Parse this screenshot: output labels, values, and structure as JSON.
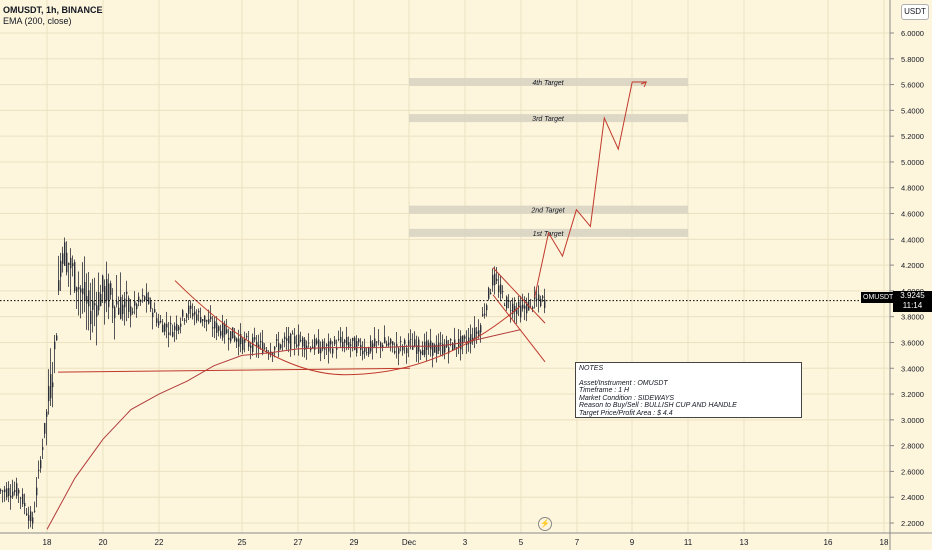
{
  "header": {
    "symbol_line": "OMUSDT, 1h, BINANCE",
    "indicator_line": "EMA (200, close)"
  },
  "price_axis": {
    "unit": "USDT",
    "current_price": "3.9245",
    "countdown": "11:14",
    "symbol_tag": "OMUSDT"
  },
  "notes": {
    "title": "NOTES",
    "lines": [
      "Asset/Instrument : OMUSDT",
      "Timeframe : 1 H",
      "Market Condition : SIDEWAYS",
      "Reason to Buy/Sell : BULLISH CUP AND HANDLE",
      "Target Price/Profit Area : $ 4.4"
    ]
  },
  "icons": {
    "flash": "lightning-icon"
  },
  "colors": {
    "background": "#fdf5dc",
    "candle": "#2a2e39",
    "ema": "#b13c3c",
    "drawing": "#c0392b",
    "target_zone": "#d9d4c2"
  },
  "chart_data": {
    "type": "candlestick",
    "ylim": [
      2.1,
      6.2
    ],
    "y_ticks": [
      "2.2000",
      "2.4000",
      "2.6000",
      "2.8000",
      "3.0000",
      "3.2000",
      "3.4000",
      "3.6000",
      "3.8000",
      "4.0000",
      "4.2000",
      "4.4000",
      "4.6000",
      "4.8000",
      "5.0000",
      "5.2000",
      "5.4000",
      "5.6000",
      "5.8000",
      "6.0000"
    ],
    "x_ticks": [
      "18",
      "20",
      "22",
      "25",
      "27",
      "29",
      "Dec",
      "3",
      "5",
      "7",
      "9",
      "11",
      "13",
      "16",
      "18"
    ],
    "current_price": 3.9245,
    "targets": [
      {
        "label": "1st Target",
        "price": 4.45
      },
      {
        "label": "2nd Target",
        "price": 4.63
      },
      {
        "label": "3rd Target",
        "price": 5.34
      },
      {
        "label": "4th Target",
        "price": 5.62
      }
    ],
    "price_series": {
      "description": "OMUSDT hourly closes approximately, Nov 17 to Dec 5",
      "x": [
        "Nov 17",
        "Nov 17 12h",
        "Nov 18",
        "Nov 18 06h",
        "Nov 18 12h",
        "Nov 19",
        "Nov 19 12h",
        "Nov 20",
        "Nov 20 12h",
        "Nov 21",
        "Nov 21 12h",
        "Nov 22",
        "Nov 22 12h",
        "Nov 23",
        "Nov 23 12h",
        "Nov 24",
        "Nov 24 12h",
        "Nov 25",
        "Nov 25 12h",
        "Nov 26",
        "Nov 26 12h",
        "Nov 27",
        "Nov 27 12h",
        "Nov 28",
        "Nov 28 12h",
        "Nov 29",
        "Nov 29 12h",
        "Nov 30",
        "Nov 30 12h",
        "Dec 1",
        "Dec 1 12h",
        "Dec 2",
        "Dec 2 12h",
        "Dec 3",
        "Dec 3 12h",
        "Dec 4",
        "Dec 4 12h",
        "Dec 5",
        "Dec 5 12h"
      ],
      "y": [
        2.45,
        2.2,
        3.1,
        3.5,
        4.35,
        4.1,
        3.85,
        4.0,
        3.9,
        3.85,
        3.95,
        3.75,
        3.7,
        3.85,
        3.8,
        3.72,
        3.68,
        3.6,
        3.58,
        3.55,
        3.6,
        3.62,
        3.58,
        3.55,
        3.6,
        3.58,
        3.55,
        3.6,
        3.56,
        3.58,
        3.56,
        3.55,
        3.58,
        3.6,
        3.7,
        4.1,
        3.9,
        3.85,
        3.92
      ]
    },
    "ema_series": {
      "name": "EMA (200, close)",
      "x": [
        "Nov 18",
        "Nov 19",
        "Nov 20",
        "Nov 21",
        "Nov 22",
        "Nov 23",
        "Nov 24",
        "Nov 25",
        "Nov 26",
        "Nov 27",
        "Nov 28",
        "Nov 29",
        "Nov 30",
        "Dec 1",
        "Dec 2",
        "Dec 3",
        "Dec 4",
        "Dec 5"
      ],
      "y": [
        2.15,
        2.55,
        2.85,
        3.08,
        3.2,
        3.3,
        3.42,
        3.5,
        3.52,
        3.55,
        3.56,
        3.56,
        3.56,
        3.57,
        3.57,
        3.6,
        3.65,
        3.7
      ]
    },
    "projection": {
      "x": [
        "Dec 5 12h",
        "Dec 6",
        "Dec 6 12h",
        "Dec 7",
        "Dec 7 12h",
        "Dec 8",
        "Dec 8 12h",
        "Dec 9",
        "Dec 9 12h"
      ],
      "y": [
        3.95,
        4.45,
        4.27,
        4.63,
        4.5,
        5.34,
        5.1,
        5.62,
        5.62
      ]
    }
  }
}
